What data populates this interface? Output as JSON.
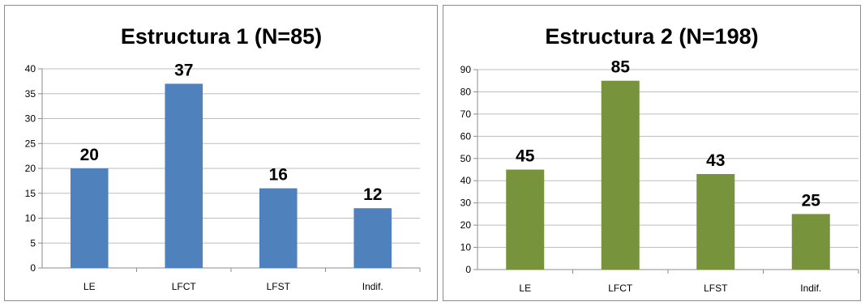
{
  "chart_data": [
    {
      "type": "bar",
      "title": "Estructura 1 (N=85)",
      "categories": [
        "LE",
        "LFCT",
        "LFST",
        "Indif."
      ],
      "values": [
        20,
        37,
        16,
        12
      ],
      "data_labels": [
        "20",
        "37",
        "16",
        "12"
      ],
      "ylim": [
        0,
        40
      ],
      "yticks": [
        0,
        5,
        10,
        15,
        20,
        25,
        30,
        35,
        40
      ],
      "xlabel": "",
      "ylabel": "",
      "grid": true,
      "legend": "none",
      "color": "#4f81bd"
    },
    {
      "type": "bar",
      "title": "Estructura 2 (N=198)",
      "categories": [
        "LE",
        "LFCT",
        "LFST",
        "Indif."
      ],
      "values": [
        45,
        85,
        43,
        25
      ],
      "data_labels": [
        "45",
        "85",
        "43",
        "25"
      ],
      "ylim": [
        0,
        90
      ],
      "yticks": [
        0,
        10,
        20,
        30,
        40,
        50,
        60,
        70,
        80,
        90
      ],
      "xlabel": "",
      "ylabel": "",
      "grid": true,
      "legend": "none",
      "color": "#77933c"
    }
  ]
}
